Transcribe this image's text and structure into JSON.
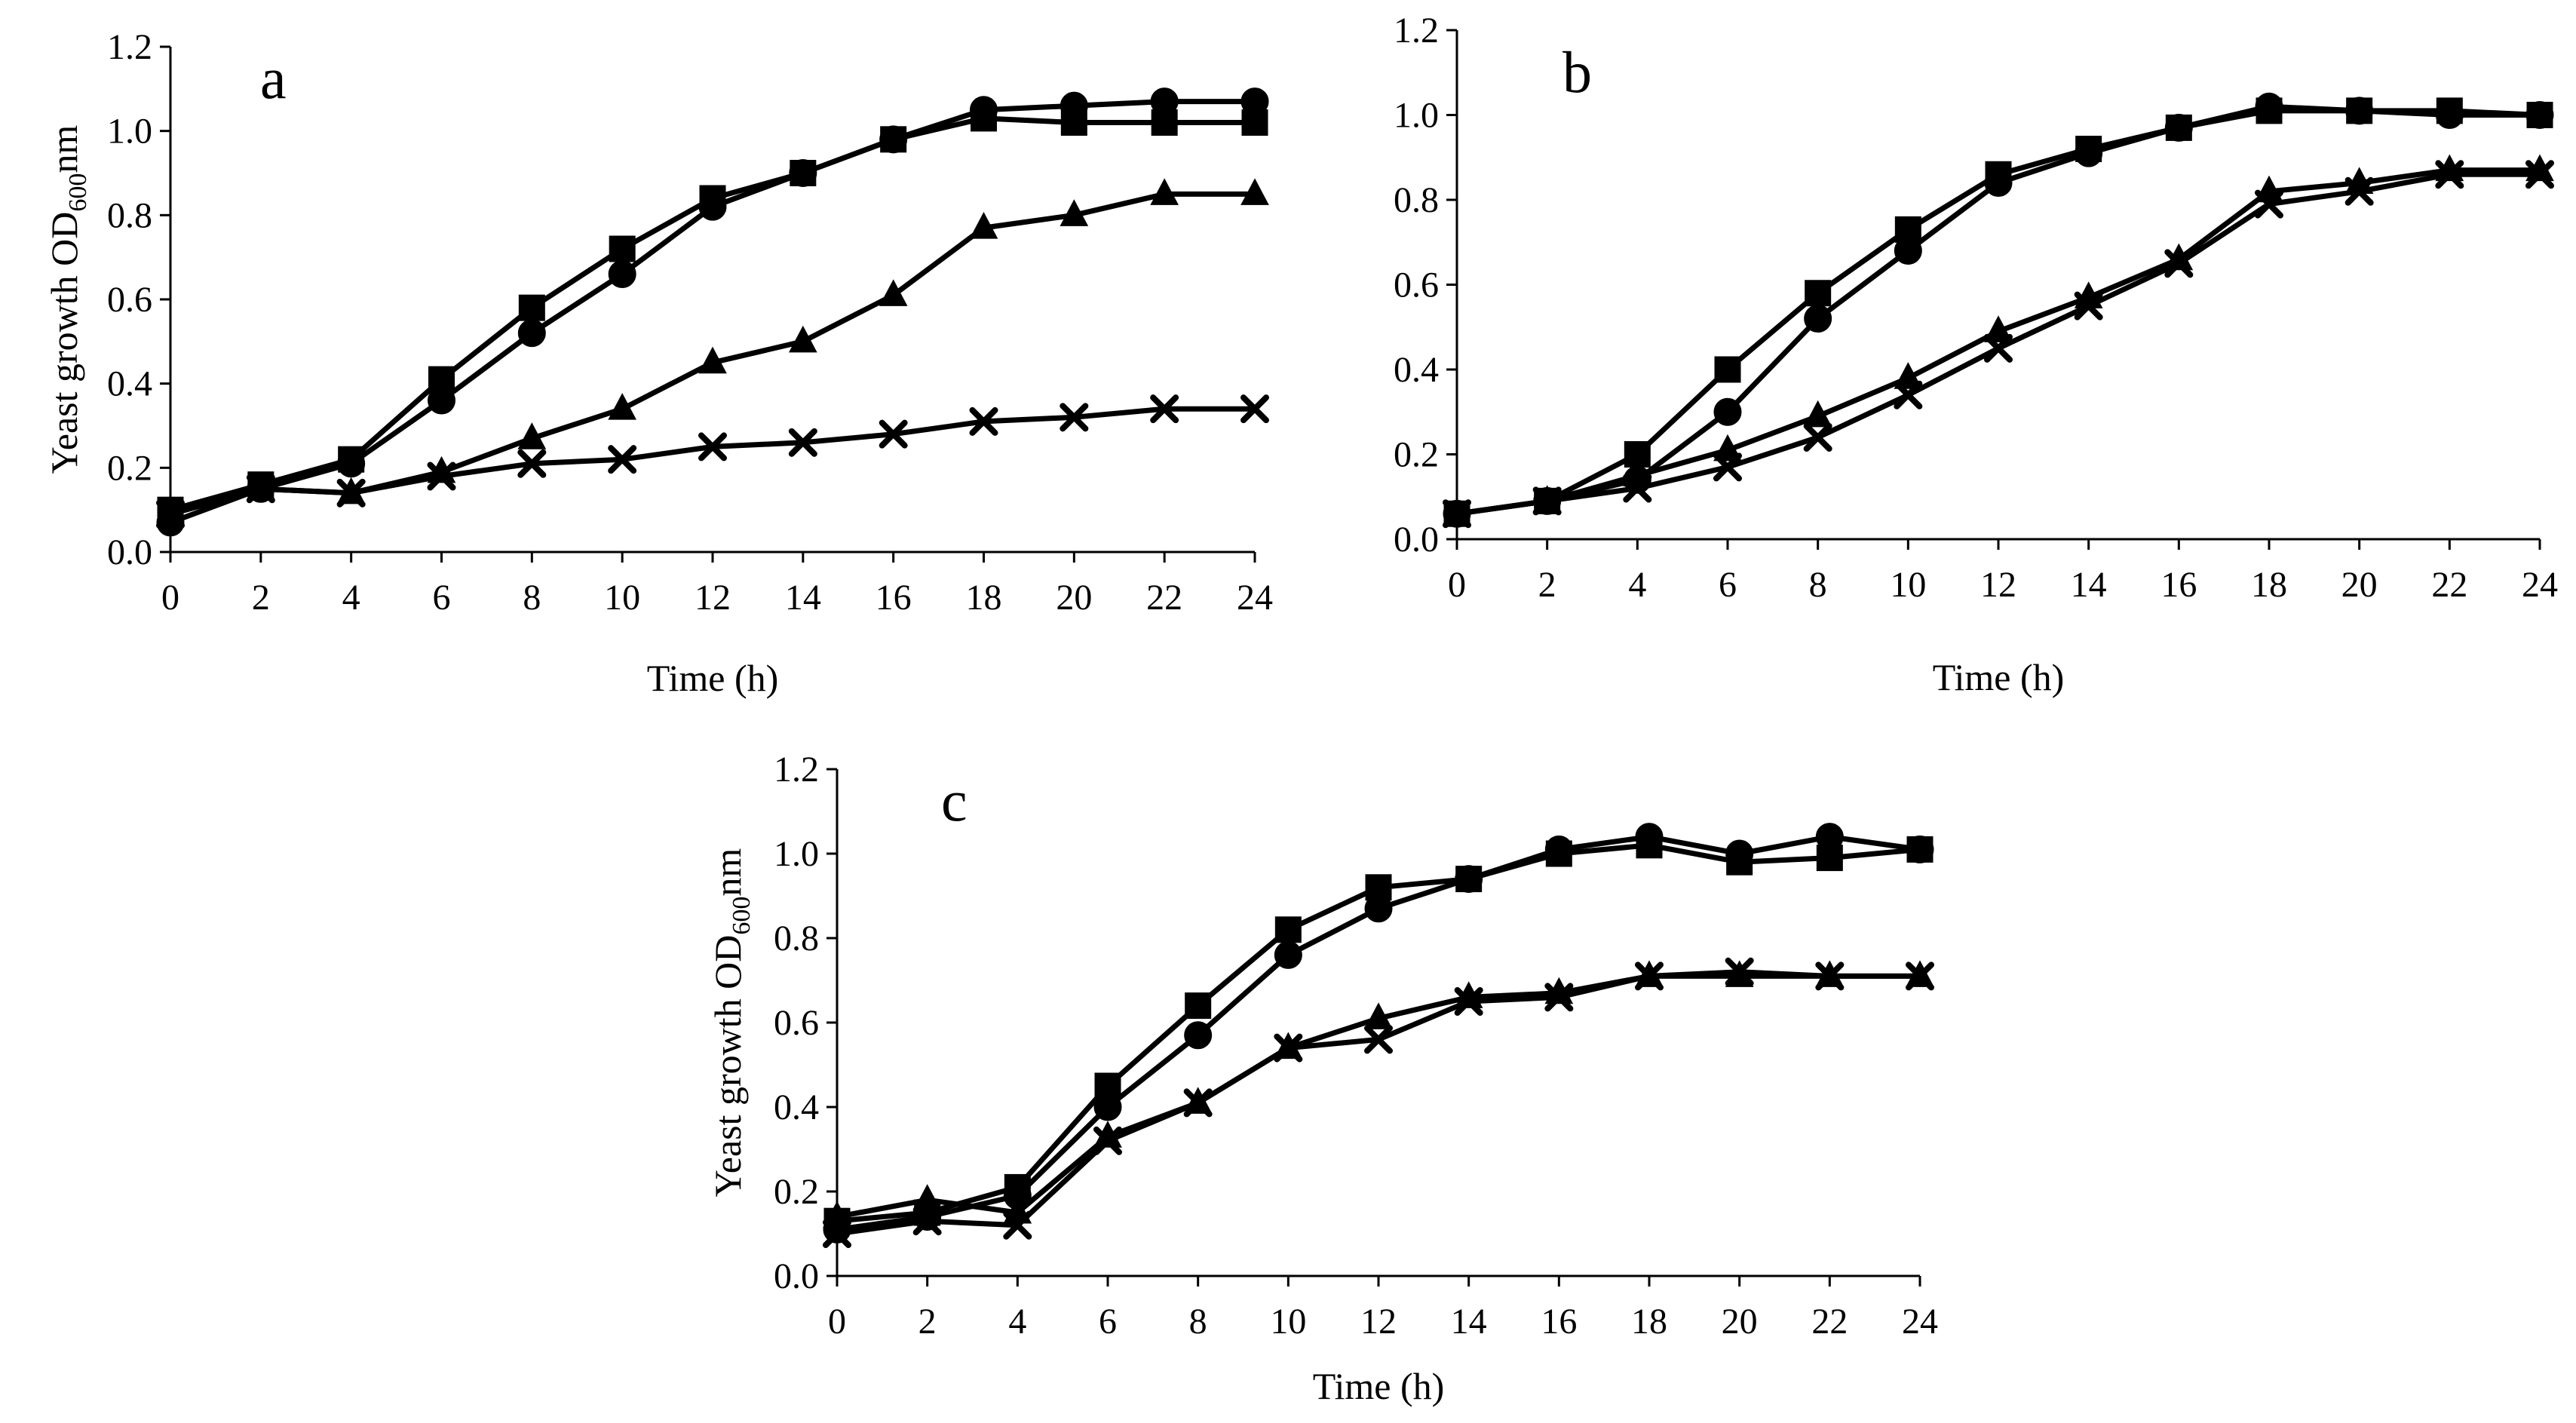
{
  "chart_data": [
    {
      "id": "a",
      "type": "line",
      "title": "a",
      "xlabel": "Time (h)",
      "ylabel_main": "Yeast growth OD",
      "ylabel_sub": "600",
      "ylabel_suffix": "nm",
      "show_ylabel": true,
      "x": [
        0,
        2,
        4,
        6,
        8,
        10,
        12,
        14,
        16,
        18,
        20,
        22,
        24
      ],
      "xticks": [
        "0",
        "2",
        "4",
        "6",
        "8",
        "10",
        "12",
        "14",
        "16",
        "18",
        "20",
        "22",
        "24"
      ],
      "yticks": [
        "0.0",
        "0.2",
        "0.4",
        "0.6",
        "0.8",
        "1.0",
        "1.2"
      ],
      "xlim": [
        0,
        24
      ],
      "ylim": [
        0,
        1.2
      ],
      "series": [
        {
          "name": "square",
          "marker": "square",
          "values": [
            0.1,
            0.16,
            0.22,
            0.41,
            0.58,
            0.72,
            0.84,
            0.9,
            0.98,
            1.03,
            1.02,
            1.02,
            1.02
          ]
        },
        {
          "name": "circle",
          "marker": "circle",
          "values": [
            0.07,
            0.15,
            0.21,
            0.36,
            0.52,
            0.66,
            0.82,
            0.9,
            0.98,
            1.05,
            1.06,
            1.07,
            1.07
          ]
        },
        {
          "name": "triangle",
          "marker": "triangle",
          "values": [
            0.09,
            0.15,
            0.14,
            0.19,
            0.27,
            0.34,
            0.45,
            0.5,
            0.61,
            0.77,
            0.8,
            0.85,
            0.85
          ]
        },
        {
          "name": "cross",
          "marker": "x",
          "values": [
            0.09,
            0.15,
            0.14,
            0.18,
            0.21,
            0.22,
            0.25,
            0.26,
            0.28,
            0.31,
            0.32,
            0.34,
            0.34
          ]
        }
      ]
    },
    {
      "id": "b",
      "type": "line",
      "title": "b",
      "xlabel": "Time (h)",
      "ylabel_main": "",
      "ylabel_sub": "",
      "ylabel_suffix": "",
      "show_ylabel": false,
      "x": [
        0,
        2,
        4,
        6,
        8,
        10,
        12,
        14,
        16,
        18,
        20,
        22,
        24
      ],
      "xticks": [
        "0",
        "2",
        "4",
        "6",
        "8",
        "10",
        "12",
        "14",
        "16",
        "18",
        "20",
        "22",
        "24"
      ],
      "yticks": [
        "0.0",
        "0.2",
        "0.4",
        "0.6",
        "0.8",
        "1.0",
        "1.2"
      ],
      "xlim": [
        0,
        24
      ],
      "ylim": [
        0,
        1.2
      ],
      "series": [
        {
          "name": "square",
          "marker": "square",
          "values": [
            0.06,
            0.09,
            0.2,
            0.4,
            0.58,
            0.73,
            0.86,
            0.92,
            0.97,
            1.01,
            1.01,
            1.01,
            1.0
          ]
        },
        {
          "name": "circle",
          "marker": "circle",
          "values": [
            0.06,
            0.09,
            0.14,
            0.3,
            0.52,
            0.68,
            0.84,
            0.91,
            0.97,
            1.02,
            1.01,
            1.0,
            1.0
          ]
        },
        {
          "name": "triangle",
          "marker": "triangle",
          "values": [
            0.06,
            0.09,
            0.15,
            0.21,
            0.29,
            0.38,
            0.49,
            0.57,
            0.66,
            0.82,
            0.84,
            0.87,
            0.87
          ]
        },
        {
          "name": "cross",
          "marker": "x",
          "values": [
            0.06,
            0.09,
            0.12,
            0.17,
            0.24,
            0.34,
            0.45,
            0.55,
            0.65,
            0.79,
            0.82,
            0.86,
            0.86
          ]
        }
      ]
    },
    {
      "id": "c",
      "type": "line",
      "title": "c",
      "xlabel": "Time (h)",
      "ylabel_main": "Yeast growth OD",
      "ylabel_sub": "600",
      "ylabel_suffix": "nm",
      "show_ylabel": true,
      "x": [
        0,
        2,
        4,
        6,
        8,
        10,
        12,
        14,
        16,
        18,
        20,
        22,
        24
      ],
      "xticks": [
        "0",
        "2",
        "4",
        "6",
        "8",
        "10",
        "12",
        "14",
        "16",
        "18",
        "20",
        "22",
        "24"
      ],
      "yticks": [
        "0.0",
        "0.2",
        "0.4",
        "0.6",
        "0.8",
        "1.0",
        "1.2"
      ],
      "xlim": [
        0,
        24
      ],
      "ylim": [
        0,
        1.2
      ],
      "series": [
        {
          "name": "square",
          "marker": "square",
          "values": [
            0.13,
            0.15,
            0.21,
            0.45,
            0.64,
            0.82,
            0.92,
            0.94,
            1.0,
            1.02,
            0.98,
            0.99,
            1.01
          ]
        },
        {
          "name": "circle",
          "marker": "circle",
          "values": [
            0.11,
            0.14,
            0.19,
            0.4,
            0.57,
            0.76,
            0.87,
            0.94,
            1.01,
            1.04,
            1.0,
            1.04,
            1.01
          ]
        },
        {
          "name": "triangle",
          "marker": "triangle",
          "values": [
            0.14,
            0.18,
            0.15,
            0.33,
            0.41,
            0.54,
            0.61,
            0.66,
            0.67,
            0.71,
            0.71,
            0.71,
            0.71
          ]
        },
        {
          "name": "cross",
          "marker": "x",
          "values": [
            0.1,
            0.13,
            0.12,
            0.32,
            0.41,
            0.54,
            0.56,
            0.65,
            0.66,
            0.71,
            0.72,
            0.71,
            0.71
          ]
        }
      ]
    }
  ]
}
